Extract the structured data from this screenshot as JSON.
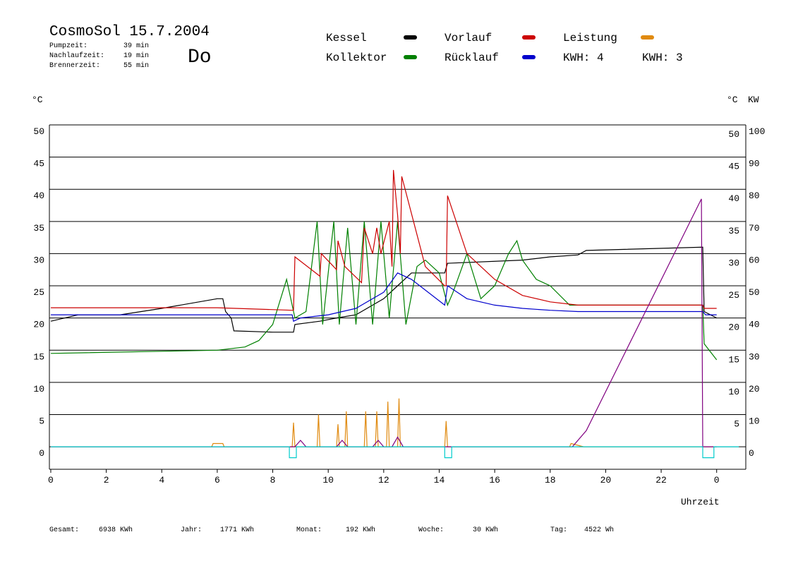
{
  "chart_data": {
    "type": "line",
    "title": "CosmoSol 15.7.2004",
    "info": [
      {
        "label": "Pumpzeit:",
        "value": "39 min"
      },
      {
        "label": "Nachlaufzeit:",
        "value": "19 min"
      },
      {
        "label": "Brennerzeit:",
        "value": "55 min"
      }
    ],
    "day": "Do",
    "day_color": "#0000cc",
    "y_label": "°C",
    "y2_label_c": "°C",
    "y2_label": "KW",
    "x_label": "Uhrzeit",
    "xlim": [
      -0.05,
      25.05
    ],
    "xticks": [
      0,
      2,
      4,
      6,
      8,
      10,
      12,
      14,
      16,
      18,
      20,
      22,
      {
        "value": 24,
        "label": "0"
      }
    ],
    "ylim": [
      -3.5,
      50
    ],
    "yticks": [
      0,
      5,
      10,
      15,
      20,
      25,
      30,
      35,
      40,
      45,
      50
    ],
    "y_right_ticks": [
      5,
      10,
      15,
      20,
      25,
      30,
      35,
      40,
      45,
      50
    ],
    "y2lim": [
      -7,
      100
    ],
    "y2ticks": [
      0,
      10,
      20,
      30,
      40,
      50,
      60,
      70,
      80,
      90,
      100
    ],
    "y2_color": "#e08a10",
    "grid": true,
    "series": [
      {
        "name": "Kessel",
        "color": "#000000",
        "x": [
          0,
          1,
          2.5,
          4,
          6,
          6.2,
          6.3,
          6.5,
          6.6,
          8,
          8.75,
          8.8,
          9.7,
          10.3,
          11,
          12,
          12.5,
          13,
          14.2,
          14.3,
          17,
          18,
          19,
          19.3,
          23.5,
          23.55,
          24
        ],
        "values": [
          19.5,
          20.5,
          20.5,
          21.5,
          23,
          23,
          21,
          20,
          18,
          17.8,
          17.8,
          19,
          19.5,
          20,
          20.5,
          23,
          25,
          27,
          27,
          28.5,
          29,
          29.5,
          29.8,
          30.5,
          31,
          21,
          20
        ]
      },
      {
        "name": "Kollektor",
        "color": "#008000",
        "x": [
          0,
          6,
          7,
          7.5,
          8,
          8.5,
          8.8,
          9.2,
          9.6,
          9.8,
          10.2,
          10.4,
          10.7,
          11,
          11.3,
          11.6,
          11.9,
          12.2,
          12.5,
          12.8,
          13.2,
          13.5,
          14,
          14.3,
          14.5,
          15,
          15.5,
          16,
          16.5,
          16.8,
          17,
          17.5,
          18,
          18.7,
          23.5,
          23.55,
          24
        ],
        "values": [
          14.5,
          15,
          15.5,
          16.5,
          19,
          26,
          20,
          21,
          35,
          19,
          35,
          19,
          34,
          19,
          35,
          19,
          35,
          20,
          35,
          19,
          28,
          29,
          27,
          22,
          24,
          30,
          23,
          25,
          30,
          32,
          29,
          26,
          25,
          22,
          22,
          16,
          13.5
        ]
      },
      {
        "name": "Vorlauf",
        "color": "#cc0000",
        "x": [
          0,
          4,
          6,
          8.7,
          8.75,
          8.8,
          9.7,
          9.75,
          10.3,
          10.35,
          10.6,
          11.2,
          11.3,
          11.6,
          11.75,
          11.9,
          12.2,
          12.3,
          12.35,
          12.5,
          12.6,
          12.65,
          13.5,
          14.2,
          14.25,
          14.3,
          15,
          16,
          17,
          18,
          19,
          20,
          22,
          23.5,
          23.55,
          24
        ],
        "values": [
          21.6,
          21.6,
          21.6,
          21.2,
          21.2,
          29.5,
          26.5,
          30,
          27.5,
          32,
          28,
          25.5,
          34,
          30,
          34,
          30,
          35,
          28,
          43,
          36,
          30,
          42,
          28,
          25,
          25,
          39,
          30,
          26,
          23.5,
          22.5,
          22,
          22,
          22,
          22,
          21.5,
          21.5
        ]
      },
      {
        "name": "Rücklauf",
        "color": "#0000cc",
        "x": [
          0,
          8.7,
          8.75,
          9,
          10,
          11,
          12,
          12.5,
          13,
          14.2,
          14.3,
          15,
          16,
          17,
          18,
          19,
          23.5,
          23.6,
          24
        ],
        "values": [
          20.5,
          20.5,
          19.5,
          20,
          20.5,
          21.5,
          24,
          27,
          26,
          22,
          25,
          23,
          22,
          21.5,
          21.2,
          21,
          21,
          20.5,
          20.5
        ]
      },
      {
        "name": "Leistung",
        "color": "#e08a10",
        "axis": "y2",
        "energy_label": "KWH: 4",
        "x": [
          0,
          5.8,
          5.85,
          6.2,
          6.25,
          8.7,
          8.75,
          8.8,
          9.6,
          9.65,
          9.7,
          10.3,
          10.35,
          10.4,
          10.6,
          10.65,
          10.7,
          11.3,
          11.35,
          11.4,
          11.7,
          11.75,
          11.8,
          12.1,
          12.15,
          12.2,
          12.5,
          12.55,
          12.6,
          14.2,
          14.25,
          14.3,
          18.7,
          18.75,
          19.2,
          24
        ],
        "values": [
          0,
          0,
          1,
          1,
          0,
          0,
          7.5,
          0,
          0,
          10,
          0,
          0,
          7,
          0,
          0,
          11,
          0,
          0,
          11,
          0,
          0,
          11,
          0,
          0,
          14,
          0,
          0,
          15,
          0,
          0,
          8,
          0,
          0,
          1,
          0,
          0
        ]
      },
      {
        "name": "KWH: 3",
        "color": "#800080",
        "axis": "y2",
        "legend": "text",
        "x": [
          0,
          8.8,
          9,
          9.2,
          10.3,
          10.5,
          10.7,
          11.6,
          11.8,
          12,
          12.3,
          12.5,
          12.7,
          18.8,
          19.3,
          23.45,
          23.5,
          24
        ],
        "values": [
          0,
          0,
          2,
          0,
          0,
          2,
          0,
          0,
          2,
          0,
          0,
          3,
          0,
          0,
          5,
          77,
          0,
          0
        ]
      },
      {
        "color": "#00cccc",
        "x": [
          0,
          8.6,
          8.6,
          8.85,
          8.85,
          14.2,
          14.2,
          14.45,
          14.45,
          23.5,
          23.5,
          23.9,
          23.9,
          24.8
        ],
        "values": [
          0,
          0,
          -1.7,
          -1.7,
          0,
          0,
          -1.7,
          -1.7,
          0,
          0,
          -1.7,
          -1.7,
          0,
          0
        ]
      }
    ],
    "footer": [
      {
        "label": "Gesamt:",
        "value": "6938 KWh"
      },
      {
        "label": "Jahr:",
        "value": "1771 KWh"
      },
      {
        "label": "Monat:",
        "value": "192 KWh"
      },
      {
        "label": "Woche:",
        "value": "30 KWh"
      },
      {
        "label": "Tag:",
        "value": "4522 Wh"
      }
    ]
  }
}
